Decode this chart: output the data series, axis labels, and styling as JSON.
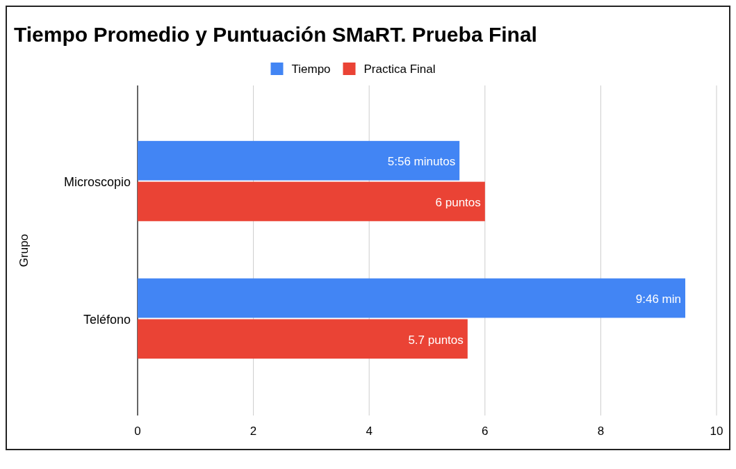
{
  "chart_data": {
    "type": "bar",
    "orientation": "horizontal",
    "title": "Tiempo Promedio y Puntuación SMaRT. Prueba Final",
    "ylabel": "Grupo",
    "categories": [
      "Microscopio",
      "Teléfono"
    ],
    "series": [
      {
        "name": "Tiempo",
        "color": "#4285f4",
        "values": [
          5.56,
          9.46
        ],
        "value_labels": [
          "5:56 minutos",
          "9:46 min"
        ]
      },
      {
        "name": "Practica Final",
        "color": "#ea4335",
        "values": [
          6,
          5.7
        ],
        "value_labels": [
          "6 puntos",
          "5.7 puntos"
        ]
      }
    ],
    "xlim": [
      0,
      10
    ],
    "xticks": [
      0,
      2,
      4,
      6,
      8,
      10
    ],
    "grid": "x",
    "legend": "top"
  }
}
